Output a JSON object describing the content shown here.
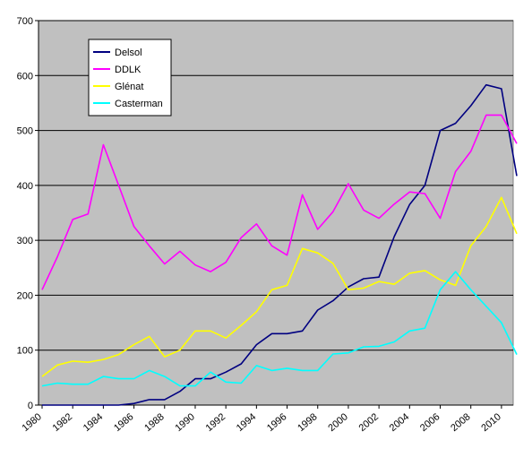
{
  "chart_data": {
    "type": "line",
    "title": "",
    "xlabel": "",
    "ylabel": "",
    "x": [
      1980,
      1981,
      1982,
      1983,
      1984,
      1985,
      1986,
      1987,
      1988,
      1989,
      1990,
      1991,
      1992,
      1993,
      1994,
      1995,
      1996,
      1997,
      1998,
      1999,
      2000,
      2001,
      2002,
      2003,
      2004,
      2005,
      2006,
      2007,
      2008,
      2009,
      2010,
      2011
    ],
    "xticks": [
      "1980",
      "1982",
      "1984",
      "1986",
      "1988",
      "1990",
      "1992",
      "1994",
      "1996",
      "1998",
      "2000",
      "2002",
      "2004",
      "2006",
      "2008",
      "2010"
    ],
    "ylim": [
      0,
      700
    ],
    "yticks": [
      "0",
      "100",
      "200",
      "300",
      "400",
      "500",
      "600",
      "700"
    ],
    "grid": "horizontal",
    "plot_background": "#c0c0c0",
    "legend_position": "top-left",
    "series": [
      {
        "name": "Delsol",
        "color": "#000080",
        "values": [
          0,
          0,
          0,
          0,
          0,
          0,
          3,
          10,
          10,
          25,
          48,
          48,
          60,
          75,
          110,
          130,
          130,
          135,
          173,
          190,
          215,
          230,
          233,
          307,
          365,
          400,
          500,
          513,
          545,
          583,
          576,
          417
        ]
      },
      {
        "name": "DDLK",
        "color": "#ff00ff",
        "values": [
          210,
          270,
          338,
          348,
          474,
          400,
          325,
          290,
          257,
          280,
          255,
          243,
          260,
          305,
          330,
          290,
          273,
          383,
          320,
          352,
          403,
          355,
          340,
          366,
          388,
          385,
          340,
          425,
          462,
          528,
          528,
          476
        ]
      },
      {
        "name": "Glénat",
        "color": "#ffff00",
        "values": [
          52,
          73,
          80,
          78,
          83,
          92,
          110,
          125,
          88,
          100,
          135,
          135,
          122,
          145,
          170,
          210,
          218,
          285,
          277,
          258,
          210,
          213,
          225,
          220,
          240,
          245,
          228,
          218,
          290,
          325,
          378,
          312
        ]
      },
      {
        "name": "Casterman",
        "color": "#00ffff",
        "values": [
          35,
          40,
          38,
          38,
          52,
          48,
          48,
          63,
          52,
          35,
          35,
          60,
          42,
          40,
          72,
          63,
          67,
          63,
          63,
          93,
          95,
          106,
          107,
          115,
          135,
          140,
          210,
          243,
          210,
          180,
          150,
          92
        ]
      }
    ]
  }
}
